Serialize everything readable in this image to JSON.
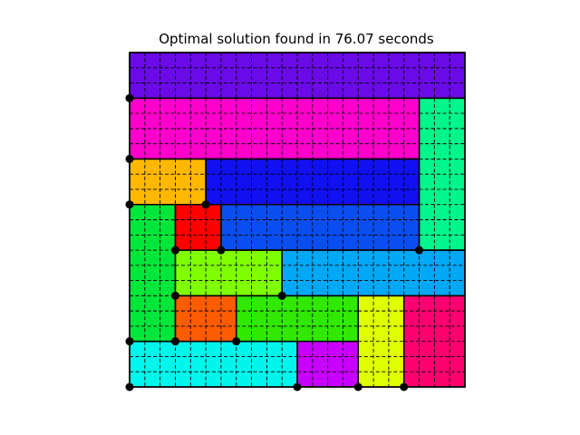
{
  "title": "Optimal solution found in 76.07 seconds",
  "grid": {
    "cols": 22,
    "rows": 22
  },
  "style": {
    "dash_color": "#000000",
    "border_color": "#000000",
    "dot_color": "#000000"
  },
  "pieces": [
    {
      "id": "violet-top",
      "color": "#6a0ae6",
      "col": 0,
      "row": 0,
      "w": 22,
      "h": 3
    },
    {
      "id": "magenta",
      "color": "#ff00cc",
      "col": 0,
      "row": 3,
      "w": 19,
      "h": 4
    },
    {
      "id": "mint",
      "color": "#00f58a",
      "col": 19,
      "row": 3,
      "w": 3,
      "h": 10
    },
    {
      "id": "amber",
      "color": "#ffb800",
      "col": 0,
      "row": 7,
      "w": 5,
      "h": 3
    },
    {
      "id": "blue",
      "color": "#1010f0",
      "col": 5,
      "row": 7,
      "w": 14,
      "h": 3
    },
    {
      "id": "green-left",
      "color": "#00e63a",
      "col": 0,
      "row": 10,
      "w": 3,
      "h": 9
    },
    {
      "id": "red",
      "color": "#ff0000",
      "col": 3,
      "row": 10,
      "w": 3,
      "h": 3
    },
    {
      "id": "royal-blue",
      "color": "#0a4ef0",
      "col": 6,
      "row": 10,
      "w": 13,
      "h": 3
    },
    {
      "id": "lime",
      "color": "#80ff00",
      "col": 3,
      "row": 13,
      "w": 7,
      "h": 3
    },
    {
      "id": "sky-blue",
      "color": "#00a8f5",
      "col": 10,
      "row": 13,
      "w": 12,
      "h": 3
    },
    {
      "id": "orange",
      "color": "#ff5c00",
      "col": 3,
      "row": 16,
      "w": 4,
      "h": 3
    },
    {
      "id": "bright-green",
      "color": "#30e800",
      "col": 7,
      "row": 16,
      "w": 8,
      "h": 3
    },
    {
      "id": "yellow",
      "color": "#e0ff00",
      "col": 15,
      "row": 16,
      "w": 3,
      "h": 6
    },
    {
      "id": "rose",
      "color": "#ff0070",
      "col": 18,
      "row": 16,
      "w": 4,
      "h": 6
    },
    {
      "id": "cyan",
      "color": "#00f5eb",
      "col": 0,
      "row": 19,
      "w": 11,
      "h": 3
    },
    {
      "id": "purple",
      "color": "#c800ff",
      "col": 11,
      "row": 19,
      "w": 4,
      "h": 3
    }
  ],
  "dots": [
    {
      "col": 0,
      "row": 3
    },
    {
      "col": 0,
      "row": 7
    },
    {
      "col": 0,
      "row": 10
    },
    {
      "col": 5,
      "row": 10
    },
    {
      "col": 3,
      "row": 13
    },
    {
      "col": 6,
      "row": 13
    },
    {
      "col": 19,
      "row": 13
    },
    {
      "col": 3,
      "row": 16
    },
    {
      "col": 10,
      "row": 16
    },
    {
      "col": 0,
      "row": 19
    },
    {
      "col": 3,
      "row": 19
    },
    {
      "col": 7,
      "row": 19
    },
    {
      "col": 0,
      "row": 22
    },
    {
      "col": 11,
      "row": 22
    },
    {
      "col": 15,
      "row": 22
    },
    {
      "col": 18,
      "row": 22
    }
  ]
}
